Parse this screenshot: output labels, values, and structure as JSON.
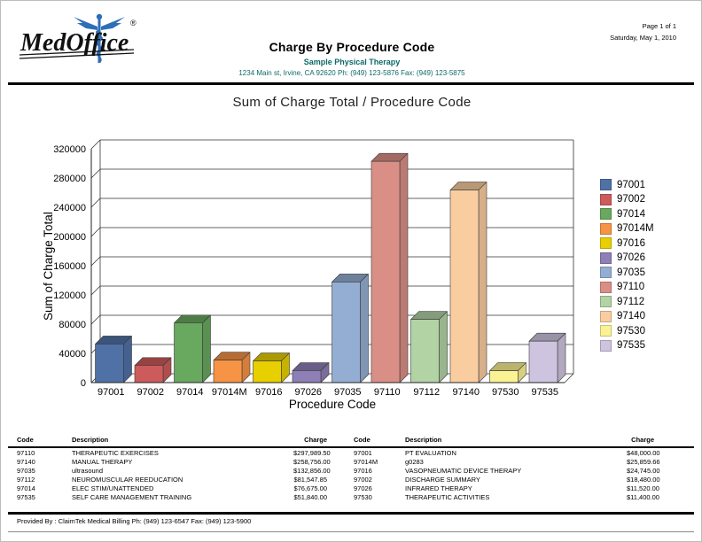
{
  "header": {
    "logo": {
      "brand": "MedOffice",
      "registered": "®"
    },
    "title": "Charge By Procedure Code",
    "practice_name": "Sample Physical Therapy",
    "practice_address": "1234 Main st, Irvine, CA 92620 Ph: (949) 123-5876 Fax: (949) 123-5875",
    "page_info": "Page 1 of 1",
    "date": "Saturday, May 1, 2010"
  },
  "chart_data": {
    "type": "bar",
    "style": "3d-clustered-column",
    "title": "Sum of Charge Total / Procedure Code",
    "xlabel": "Procedure Code",
    "ylabel": "Sum of Charge Total",
    "ylim": [
      0,
      320000
    ],
    "yticks": [
      0,
      40000,
      80000,
      120000,
      160000,
      200000,
      240000,
      280000,
      320000
    ],
    "grid": true,
    "legend_position": "right",
    "categories": [
      "97001",
      "97002",
      "97014",
      "97014M",
      "97016",
      "97026",
      "97035",
      "97110",
      "97112",
      "97140",
      "97530",
      "97535"
    ],
    "values": [
      48000,
      18480,
      76675,
      25859.66,
      24745,
      11520,
      132856,
      297989.5,
      81547.85,
      258756,
      11400,
      51840
    ],
    "colors": [
      "#4F71A6",
      "#CD5B5B",
      "#69A85F",
      "#F79344",
      "#E8CF00",
      "#8E7FB6",
      "#94AED3",
      "#DA8F86",
      "#B2D3A3",
      "#FACDA0",
      "#FAF293",
      "#CFC4DF"
    ]
  },
  "table": {
    "headers": [
      "Code",
      "Description",
      "Charge",
      "Code",
      "Description",
      "Charge"
    ],
    "rows": [
      [
        "97110",
        "THERAPEUTIC EXERCISES",
        "$297,989.50",
        "97001",
        "PT EVALUATION",
        "$48,000.00"
      ],
      [
        "97140",
        "MANUAL THERAPY",
        "$258,756.00",
        "97014M",
        "g0283",
        "$25,859.66"
      ],
      [
        "97035",
        "ultrasound",
        "$132,856.00",
        "97016",
        "VASOPNEUMATIC DEVICE THERAPY",
        "$24,745.00"
      ],
      [
        "97112",
        "NEUROMUSCULAR REEDUCATION",
        "$81,547.85",
        "97002",
        "DISCHARGE SUMMARY",
        "$18,480.00"
      ],
      [
        "97014",
        "ELEC STIM/UNATTENDED",
        "$76,675.00",
        "97026",
        "INFRARED THERAPY",
        "$11,520.00"
      ],
      [
        "97535",
        "SELF CARE MANAGEMENT TRAINING",
        "$51,840.00",
        "97530",
        "THERAPEUTIC ACTIVITIES",
        "$11,400.00"
      ]
    ]
  },
  "footer": {
    "provided_by": "Provided By : ClaimTek Medical Billing Ph: (949) 123-6547 Fax: (949) 123-5900"
  }
}
